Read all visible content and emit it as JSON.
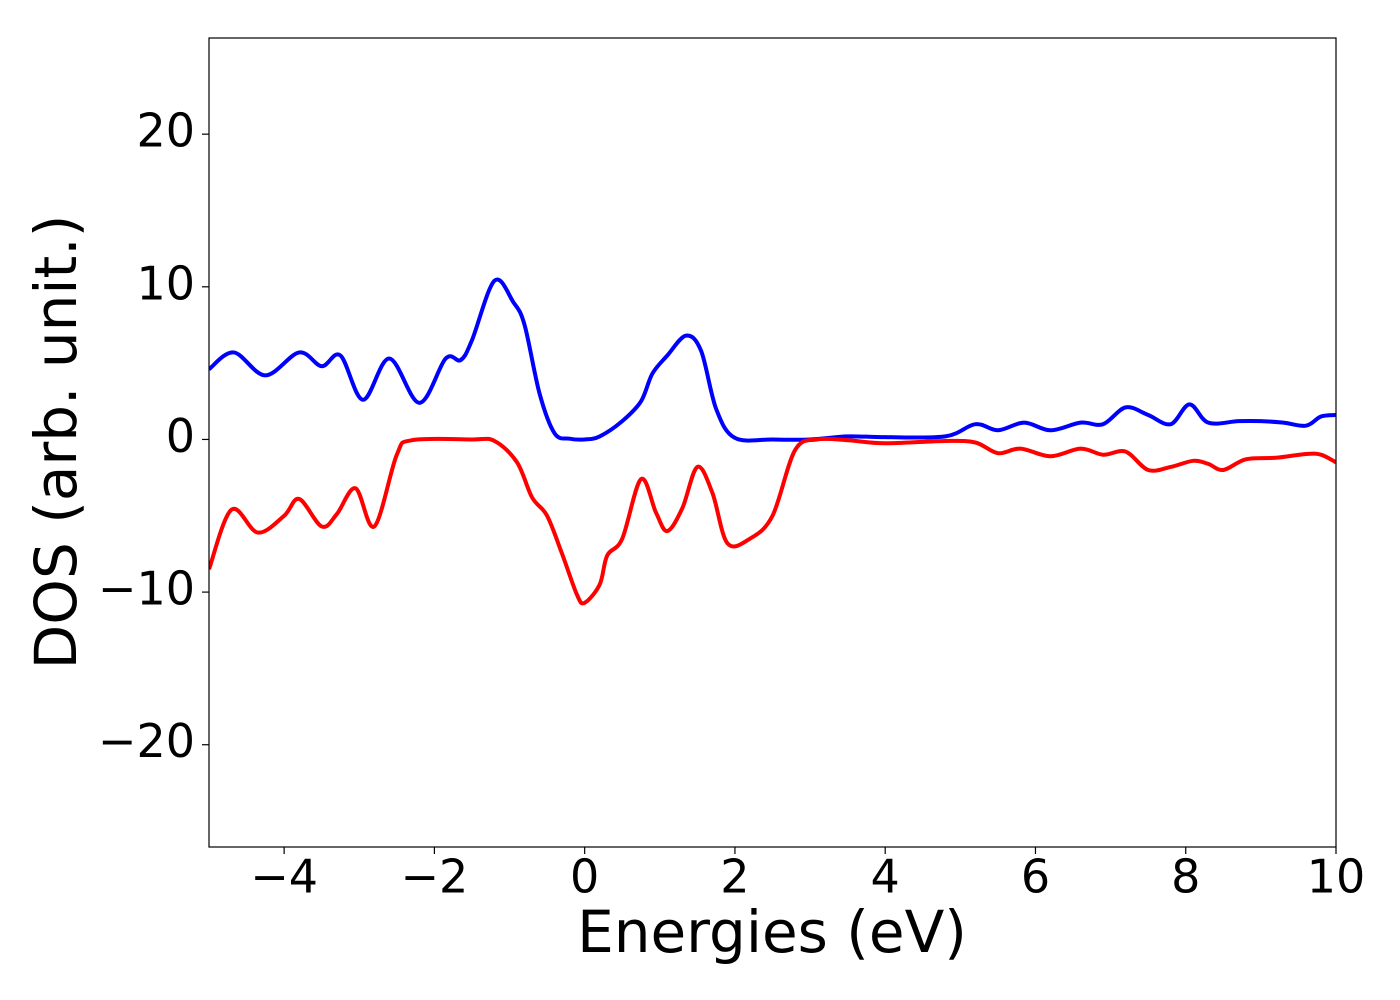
{
  "chart_data": {
    "type": "line",
    "xlabel": "Energies (eV)",
    "ylabel": "DOS (arb. unit.)",
    "xlim": [
      -5,
      10
    ],
    "ylim": [
      -26.7,
      26.3
    ],
    "xticks": [
      {
        "value": -4,
        "label": "−4"
      },
      {
        "value": -2,
        "label": "−2"
      },
      0,
      2,
      4,
      6,
      8,
      10
    ],
    "yticks": [
      {
        "value": -20,
        "label": "−20"
      },
      {
        "value": -10,
        "label": "−10"
      },
      0,
      10,
      20
    ],
    "grid": false,
    "series": [
      {
        "color": "#0000ff",
        "x": [
          -5,
          -4.67,
          -4.25,
          -3.8,
          -3.5,
          -3.25,
          -2.95,
          -2.6,
          -2.2,
          -1.85,
          -1.65,
          -1.5,
          -1.2,
          -0.95,
          -0.8,
          -0.6,
          -0.4,
          -0.2,
          0,
          0.2,
          0.5,
          0.75,
          0.9,
          1.1,
          1.35,
          1.55,
          1.75,
          2.0,
          2.5,
          3.0,
          3.5,
          4.0,
          4.8,
          5.2,
          5.5,
          5.85,
          6.2,
          6.6,
          6.9,
          7.2,
          7.5,
          7.8,
          8.05,
          8.3,
          8.7,
          9.0,
          9.3,
          9.6,
          9.8,
          10
        ],
        "values": [
          4.6,
          5.7,
          4.2,
          5.7,
          4.8,
          5.5,
          2.6,
          5.3,
          2.4,
          5.3,
          5.2,
          6.5,
          10.4,
          9.0,
          7.5,
          3.0,
          0.4,
          0.05,
          0,
          0.2,
          1.2,
          2.5,
          4.3,
          5.5,
          6.8,
          5.8,
          2.0,
          0.1,
          0,
          0,
          0.2,
          0.15,
          0.2,
          1.0,
          0.6,
          1.1,
          0.6,
          1.1,
          1.0,
          2.1,
          1.6,
          1.0,
          2.3,
          1.1,
          1.2,
          1.2,
          1.1,
          0.9,
          1.5,
          1.6
        ]
      },
      {
        "color": "#ff0000",
        "x": [
          -5,
          -4.7,
          -4.35,
          -4.0,
          -3.8,
          -3.5,
          -3.3,
          -3.05,
          -2.8,
          -2.5,
          -2.3,
          -1.5,
          -1.2,
          -0.9,
          -0.7,
          -0.5,
          -0.3,
          -0.1,
          0,
          0.2,
          0.3,
          0.5,
          0.75,
          0.95,
          1.1,
          1.3,
          1.5,
          1.7,
          1.9,
          2.2,
          2.5,
          2.8,
          3.1,
          3.5,
          4.0,
          4.8,
          5.2,
          5.5,
          5.8,
          6.2,
          6.6,
          6.9,
          7.2,
          7.5,
          7.8,
          8.1,
          8.3,
          8.5,
          8.8,
          9.2,
          9.6,
          9.8,
          10
        ],
        "values": [
          -8.5,
          -4.6,
          -6.1,
          -5.0,
          -3.9,
          -5.7,
          -4.9,
          -3.2,
          -5.7,
          -1.0,
          -0.05,
          0,
          -0.1,
          -1.5,
          -3.8,
          -5.0,
          -7.5,
          -10.2,
          -10.7,
          -9.5,
          -7.6,
          -6.5,
          -2.6,
          -4.8,
          -6.0,
          -4.5,
          -1.8,
          -3.5,
          -6.8,
          -6.5,
          -5.0,
          -0.7,
          0,
          -0.05,
          -0.25,
          -0.1,
          -0.2,
          -0.9,
          -0.6,
          -1.1,
          -0.6,
          -1.0,
          -0.8,
          -2.0,
          -1.8,
          -1.4,
          -1.6,
          -2.0,
          -1.3,
          -1.2,
          -0.95,
          -1.0,
          -1.5
        ]
      }
    ]
  }
}
